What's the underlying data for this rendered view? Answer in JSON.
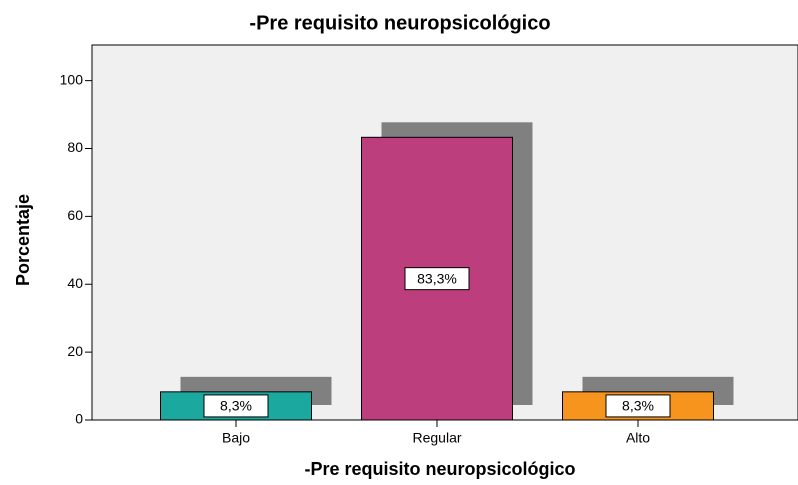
{
  "chart_data": {
    "type": "bar",
    "title": "-Pre requisito neuropsicológico",
    "x_label": "-Pre requisito neuropsicológico",
    "y_label": "Porcentaje",
    "categories": [
      "Bajo",
      "Regular",
      "Alto"
    ],
    "values": [
      8.3,
      83.3,
      8.3
    ],
    "value_labels": [
      "8,3%",
      "83,3%",
      "8,3%"
    ],
    "colors": [
      "#1aa89f",
      "#bd3e7c",
      "#f7941d"
    ],
    "ylim": [
      0,
      110.5
    ],
    "yticks": [
      0,
      20,
      40,
      60,
      80,
      100
    ]
  }
}
